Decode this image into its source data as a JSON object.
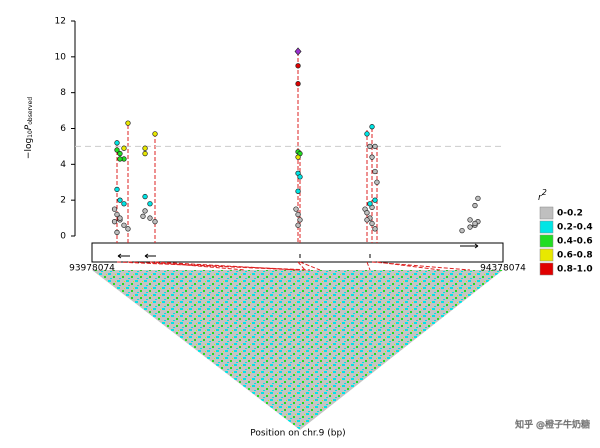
{
  "chart_data": {
    "type": "scatter",
    "ylabel": {
      "prefix": "−log",
      "sub": "10",
      "main": "P",
      "subscript": "observed"
    },
    "xlabel": "Position on chr.9 (bp)",
    "xlim": [
      93978074,
      94378074
    ],
    "xticks": [
      93978074,
      94378074
    ],
    "ylim": [
      0,
      12
    ],
    "yticks": [
      0,
      2,
      4,
      6,
      8,
      10,
      12
    ],
    "threshold": 5,
    "legend_title": {
      "base": "r",
      "sup": "2"
    },
    "lead": {
      "x": 94178600,
      "value": 10.3,
      "color": "#9b30d0"
    },
    "series": [
      {
        "name": "0-0.2",
        "color": "#bfbfbf",
        "x": [
          94000000,
          94002400,
          94005300,
          94009200,
          94013100,
          94002400,
          94005300,
          94000000,
          94029700,
          94034500,
          94039400,
          94027700,
          94176600,
          94178600,
          94180500,
          94178600,
          94248600,
          94253500,
          94250600,
          94253500,
          94255400,
          94243800,
          94245700,
          94248600,
          94250600,
          94253500,
          94245700,
          94250600,
          94338200,
          94346000,
          94350800,
          94353700,
          94350800,
          94346000,
          94350800,
          94353700
        ],
        "values": [
          1.5,
          1.2,
          0.9,
          0.6,
          0.4,
          0.2,
          1.0,
          0.8,
          1.4,
          1.0,
          0.8,
          1.1,
          1.5,
          1.2,
          0.9,
          0.6,
          5.0,
          5.0,
          4.4,
          3.6,
          3.0,
          1.5,
          1.3,
          1.0,
          0.7,
          0.4,
          0.9,
          1.6,
          0.3,
          0.5,
          0.6,
          0.8,
          0.7,
          0.9,
          1.7,
          2.1
        ]
      },
      {
        "name": "0.2-0.4",
        "color": "#00e5e5",
        "x": [
          94002400,
          94002400,
          94005300,
          94009200,
          94029700,
          94034500,
          94178600,
          94180500,
          94178600,
          94245700,
          94250600,
          94248600,
          94253500
        ],
        "values": [
          5.2,
          2.6,
          2.0,
          1.8,
          2.2,
          1.8,
          3.5,
          3.3,
          2.5,
          5.7,
          6.1,
          1.8,
          2.0
        ]
      },
      {
        "name": "0.4-0.6",
        "color": "#22dd22",
        "x": [
          94002400,
          94005300,
          94009200,
          94178600,
          94180500,
          94005300
        ],
        "values": [
          4.8,
          4.6,
          4.3,
          4.7,
          4.6,
          4.3
        ]
      },
      {
        "name": "0.6-0.8",
        "color": "#e8e800",
        "x": [
          94013100,
          94009200,
          94029700,
          94029700,
          94039400,
          94178600
        ],
        "values": [
          6.3,
          4.9,
          4.9,
          4.6,
          5.7,
          4.4
        ]
      },
      {
        "name": "0.8-1.0",
        "color": "#e00000",
        "x": [
          94178600,
          94178600
        ],
        "values": [
          9.5,
          8.5
        ]
      }
    ]
  },
  "watermark": "知乎 @橙子牛奶糖"
}
